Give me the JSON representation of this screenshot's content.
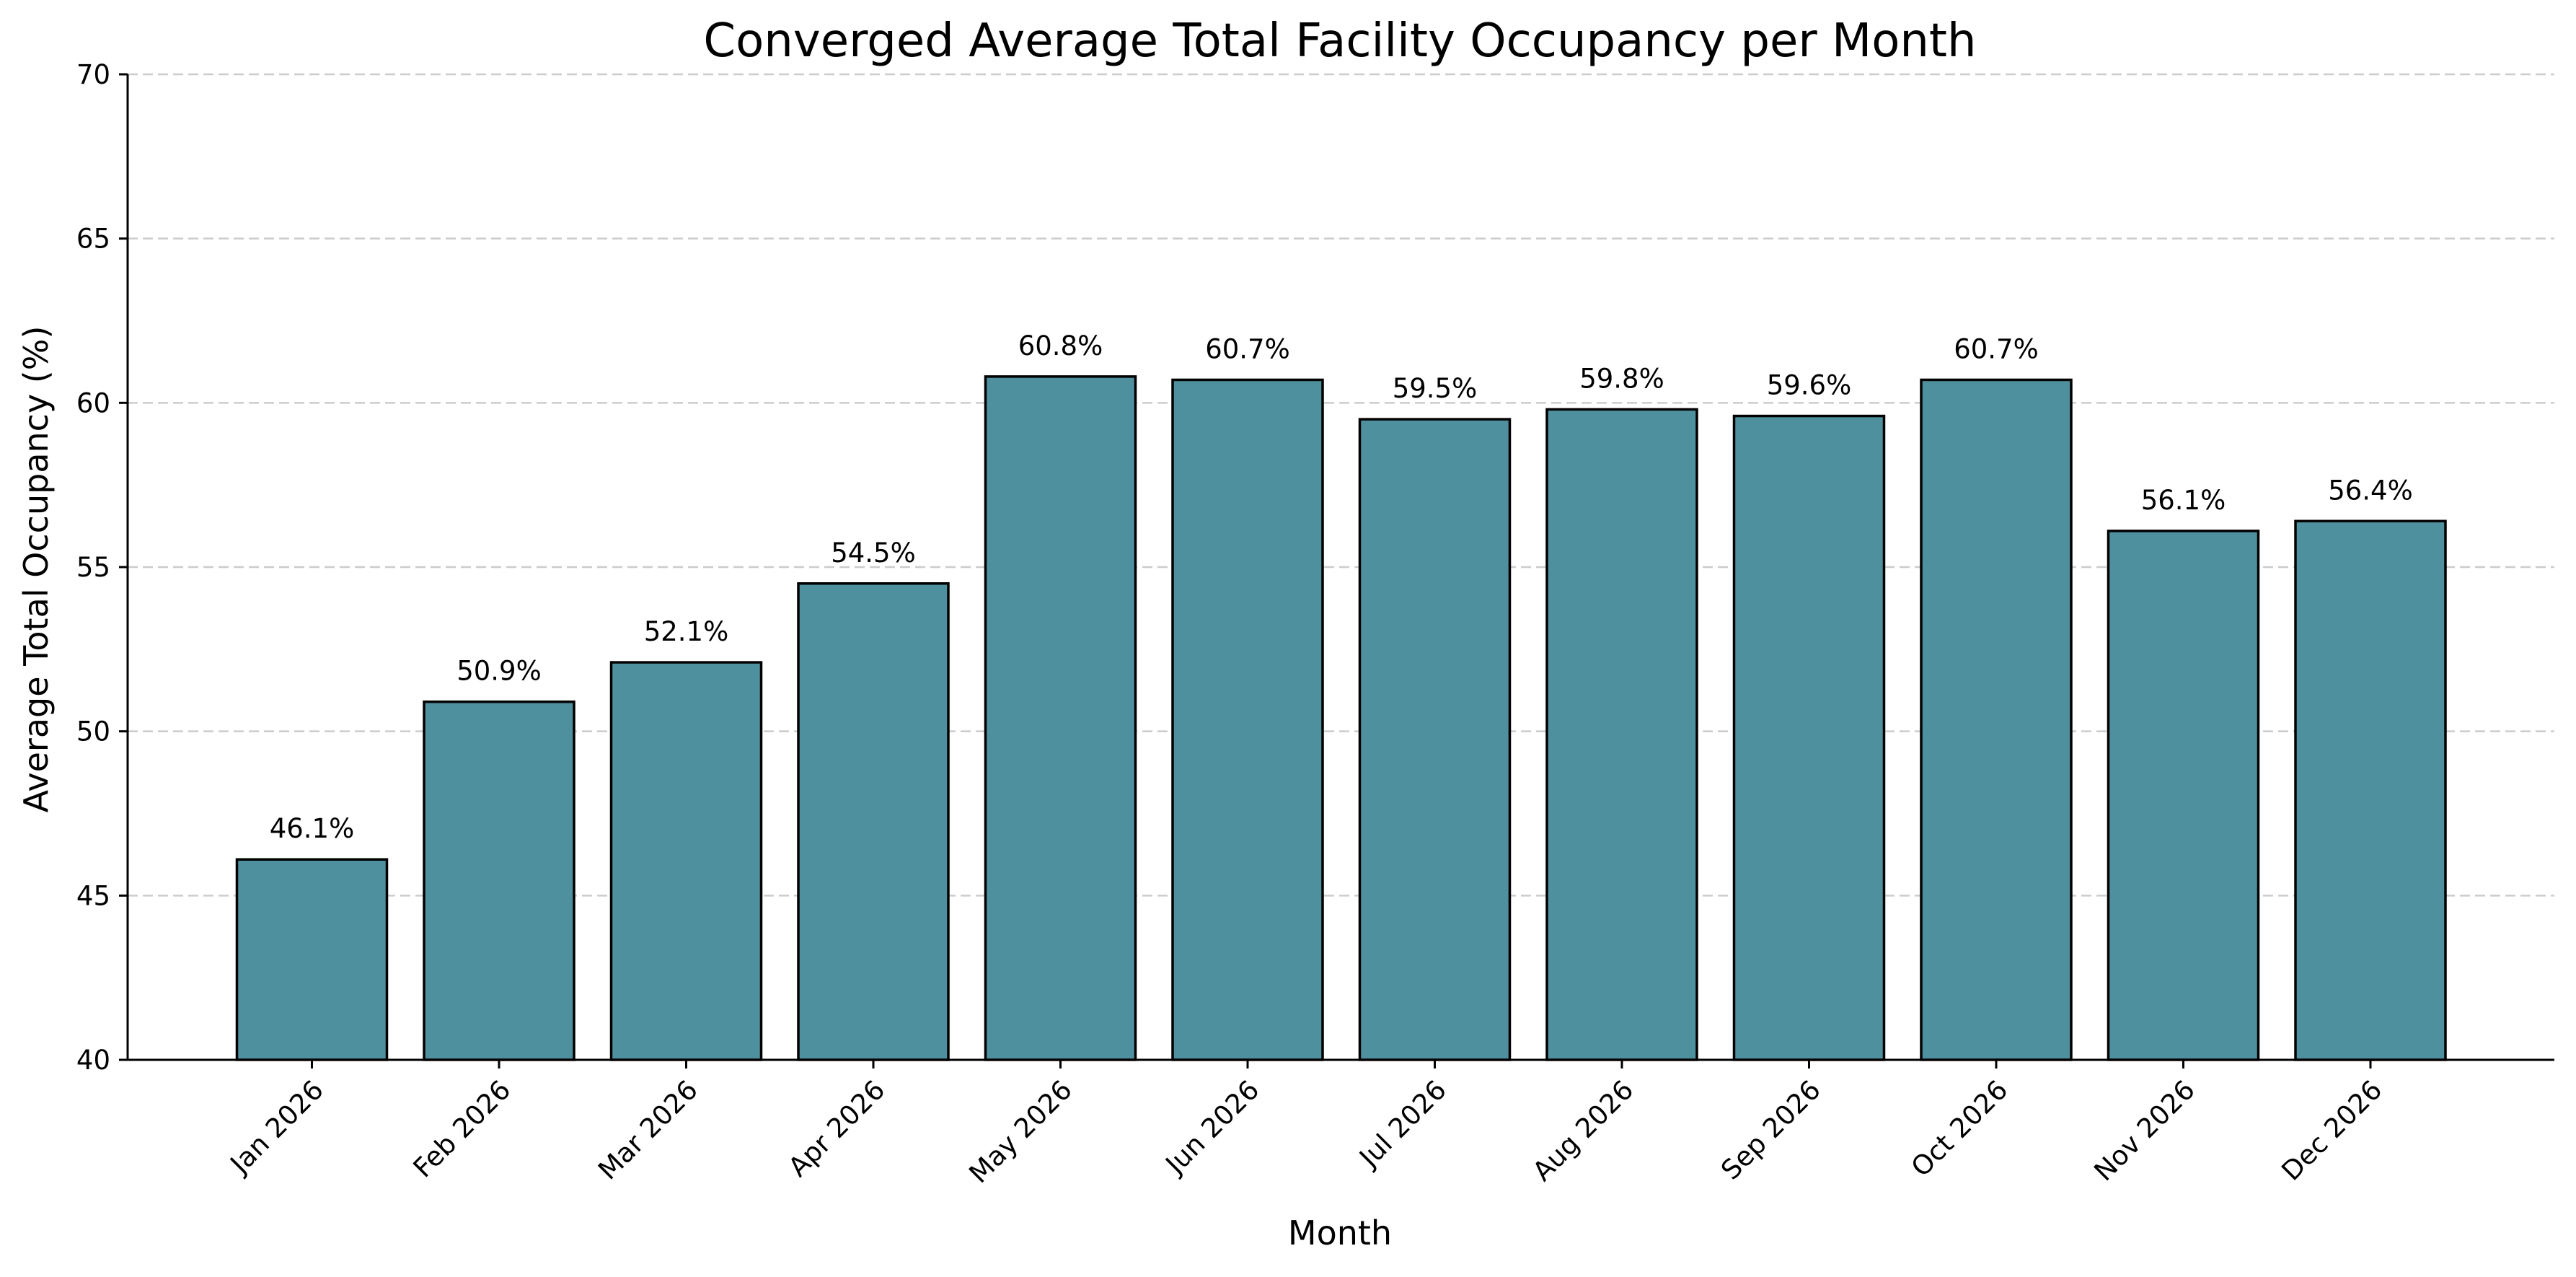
{
  "chart_data": {
    "type": "bar",
    "title": "Converged Average Total Facility Occupancy per Month",
    "xlabel": "Month",
    "ylabel": "Average Total Occupancy (%)",
    "categories": [
      "Jan 2026",
      "Feb 2026",
      "Mar 2026",
      "Apr 2026",
      "May 2026",
      "Jun 2026",
      "Jul 2026",
      "Aug 2026",
      "Sep 2026",
      "Oct 2026",
      "Nov 2026",
      "Dec 2026"
    ],
    "values": [
      46.1,
      50.9,
      52.1,
      54.5,
      60.8,
      60.7,
      59.5,
      59.8,
      59.6,
      60.7,
      56.1,
      56.4
    ],
    "data_labels": [
      "46.1%",
      "50.9%",
      "52.1%",
      "54.5%",
      "60.8%",
      "60.7%",
      "59.5%",
      "59.8%",
      "59.6%",
      "60.7%",
      "56.1%",
      "56.4%"
    ],
    "ylim": [
      40,
      70
    ],
    "yticks": [
      40,
      45,
      50,
      55,
      60,
      65,
      70
    ],
    "ytick_labels": [
      "40",
      "45",
      "50",
      "55",
      "60",
      "65",
      "70"
    ],
    "grid": "y-dashed",
    "bar_color": "#4f909e",
    "edge_color": "#000000"
  }
}
